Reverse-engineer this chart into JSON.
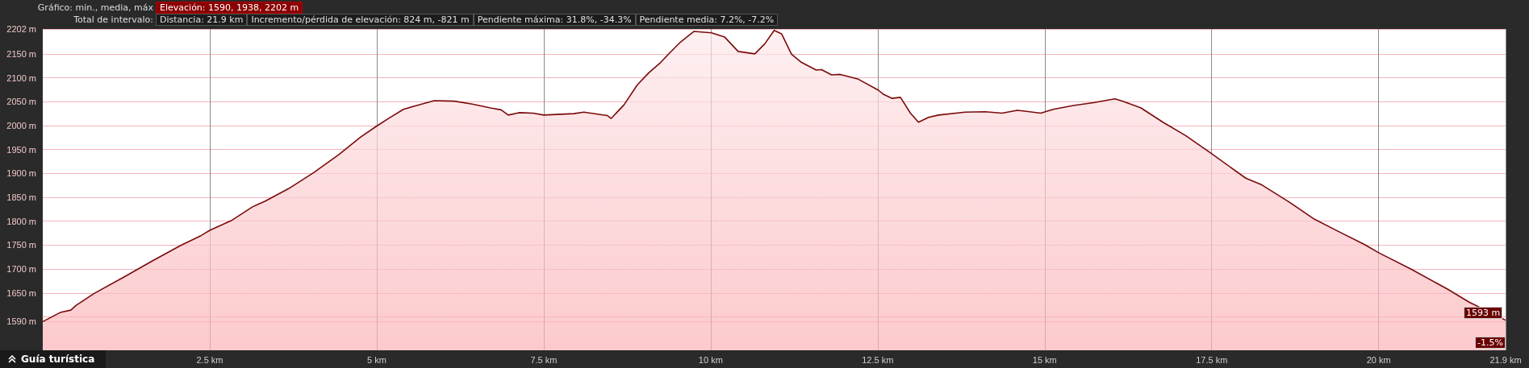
{
  "chart_data": {
    "type": "area",
    "annotations": [
      "Gráfico: min., media, máx",
      "Elevación: 1590, 1938, 2202 m",
      "Total de intervalo:",
      "Distancia: 21.9 km",
      "Incremento/pérdida de elevación: 824 m, -821 m",
      "Pendiente máxima: 31.8%, -34.3%",
      "Pendiente media: 7.2%, -7.2%",
      "Guía turística",
      {
        "text": "1593 m",
        "x": 21.9,
        "y": 1593
      },
      {
        "text": "-1.5%",
        "x": 21.9
      }
    ],
    "x": [
      0,
      0.26,
      0.42,
      0.5,
      0.77,
      1.2,
      1.63,
      2.06,
      2.36,
      2.5,
      2.82,
      3.14,
      3.33,
      3.68,
      4.06,
      4.43,
      4.76,
      5.0,
      5.19,
      5.4,
      5.62,
      5.86,
      6.16,
      6.43,
      6.7,
      6.86,
      6.97,
      7.13,
      7.34,
      7.5,
      7.95,
      8.1,
      8.45,
      8.51,
      8.7,
      8.9,
      9.07,
      9.25,
      9.4,
      9.55,
      9.75,
      10.01,
      10.21,
      10.41,
      10.66,
      10.81,
      10.95,
      11.06,
      11.21,
      11.36,
      11.58,
      11.66,
      11.81,
      11.94,
      12.21,
      12.51,
      12.59,
      12.71,
      12.84,
      12.99,
      13.11,
      13.26,
      13.41,
      13.81,
      14.11,
      14.36,
      14.59,
      14.94,
      15.13,
      15.43,
      15.73,
      16.05,
      16.17,
      16.44,
      16.77,
      17.11,
      17.5,
      18.01,
      18.25,
      18.65,
      19.04,
      19.39,
      19.79,
      20.0,
      20.48,
      21.03,
      21.35,
      21.9
    ],
    "series": [
      {
        "color": "#7a0a0a",
        "values": [
          1590,
          1609,
          1614,
          1624,
          1649,
          1682,
          1716,
          1749,
          1769,
          1781,
          1801,
          1830,
          1842,
          1868,
          1902,
          1939,
          1976,
          1999,
          2016,
          2034,
          2043,
          2052,
          2051,
          2045,
          2037,
          2033,
          2022,
          2027,
          2026,
          2022,
          2025,
          2028,
          2021,
          2015,
          2043,
          2085,
          2110,
          2132,
          2154,
          2175,
          2197,
          2194,
          2185,
          2155,
          2150,
          2171,
          2199,
          2192,
          2149,
          2132,
          2116,
          2117,
          2106,
          2107,
          2097,
          2074,
          2065,
          2057,
          2059,
          2026,
          2007,
          2017,
          2022,
          2028,
          2029,
          2026,
          2032,
          2026,
          2034,
          2042,
          2048,
          2056,
          2051,
          2037,
          2007,
          1979,
          1941,
          1890,
          1876,
          1841,
          1804,
          1779,
          1751,
          1734,
          1700,
          1658,
          1631,
          1593
        ]
      }
    ],
    "xlim": [
      0,
      21.9
    ],
    "xticks": [
      {
        "value": 2.5,
        "label": "2.5 km"
      },
      {
        "value": 5,
        "label": "5 km"
      },
      {
        "value": 7.5,
        "label": "7.5 km"
      },
      {
        "value": 10,
        "label": "10 km"
      },
      {
        "value": 12.5,
        "label": "12.5 km"
      },
      {
        "value": 15,
        "label": "15 km"
      },
      {
        "value": 17.5,
        "label": "17.5 km"
      },
      {
        "value": 20,
        "label": "20 km"
      },
      {
        "value": 21.9,
        "label": "21.9 km"
      }
    ],
    "ylim": [
      1530,
      2202
    ],
    "yticks": [
      {
        "value": 1590,
        "label": "1590 m"
      },
      {
        "value": 1600,
        "label": null
      },
      {
        "value": 1650,
        "label": "1650 m"
      },
      {
        "value": 1700,
        "label": "1700 m"
      },
      {
        "value": 1750,
        "label": "1750 m"
      },
      {
        "value": 1800,
        "label": "1800 m"
      },
      {
        "value": 1850,
        "label": "1850 m"
      },
      {
        "value": 1900,
        "label": "1900 m"
      },
      {
        "value": 1950,
        "label": "1950 m"
      },
      {
        "value": 2000,
        "label": "2000 m"
      },
      {
        "value": 2050,
        "label": "2050 m"
      },
      {
        "value": 2100,
        "label": "2100 m"
      },
      {
        "value": 2150,
        "label": "2150 m"
      },
      {
        "value": 2202,
        "label": "2202 m"
      }
    ],
    "grid": true,
    "marker": "none"
  }
}
